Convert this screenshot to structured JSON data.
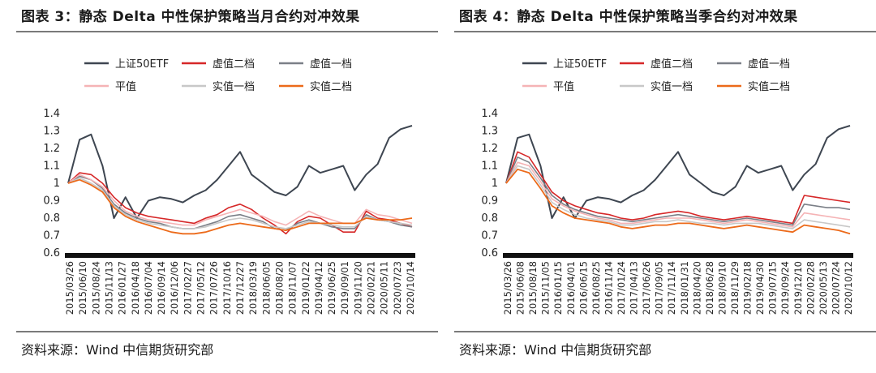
{
  "chart_data": [
    {
      "type": "line",
      "title": "图表 3：静态 Delta 中性保护策略当月合约对冲效果",
      "source": "资料来源：Wind 中信期货研究部",
      "ylim": [
        0.6,
        1.4
      ],
      "yticks": [
        "0.6",
        "0.7",
        "0.8",
        "0.9",
        "1",
        "1.1",
        "1.2",
        "1.3",
        "1.4"
      ],
      "x_labels": [
        "2015/03/26",
        "2015/06/10",
        "2015/08/24",
        "2015/11/13",
        "2016/01/27",
        "2016/04/18",
        "2016/07/04",
        "2016/09/14",
        "2016/12/06",
        "2017/02/27",
        "2017/05/12",
        "2017/07/26",
        "2017/10/16",
        "2017/12/27",
        "2018/03/19",
        "2018/06/05",
        "2018/08/20",
        "2018/11/07",
        "2019/01/22",
        "2019/04/12",
        "2019/06/25",
        "2019/09/01",
        "2019/11/20",
        "2020/02/21",
        "2020/05/11",
        "2020/07/23",
        "2020/10/14"
      ],
      "series": [
        {
          "name": "上证50ETF",
          "color": "#3e4651",
          "width": 2.0,
          "values": [
            1.0,
            1.25,
            1.28,
            1.1,
            0.8,
            0.92,
            0.8,
            0.9,
            0.92,
            0.91,
            0.89,
            0.93,
            0.96,
            1.02,
            1.1,
            1.18,
            1.05,
            1.0,
            0.95,
            0.93,
            0.98,
            1.1,
            1.06,
            1.08,
            1.1,
            0.96,
            1.05,
            1.11,
            1.26,
            1.31,
            1.33
          ]
        },
        {
          "name": "虚值二档",
          "color": "#d62728",
          "width": 1.6,
          "values": [
            1.0,
            1.06,
            1.05,
            1.0,
            0.92,
            0.86,
            0.83,
            0.81,
            0.8,
            0.79,
            0.78,
            0.77,
            0.8,
            0.82,
            0.86,
            0.88,
            0.85,
            0.8,
            0.76,
            0.71,
            0.78,
            0.81,
            0.8,
            0.76,
            0.72,
            0.72,
            0.84,
            0.8,
            0.79,
            0.77,
            0.75
          ]
        },
        {
          "name": "虚值一档",
          "color": "#7b7f87",
          "width": 1.6,
          "values": [
            1.0,
            1.04,
            1.02,
            0.97,
            0.88,
            0.83,
            0.8,
            0.78,
            0.77,
            0.75,
            0.74,
            0.74,
            0.76,
            0.78,
            0.81,
            0.82,
            0.8,
            0.78,
            0.74,
            0.73,
            0.77,
            0.79,
            0.77,
            0.75,
            0.74,
            0.74,
            0.82,
            0.79,
            0.78,
            0.76,
            0.75
          ]
        },
        {
          "name": "平值",
          "color": "#f5b3b5",
          "width": 1.6,
          "values": [
            1.0,
            1.05,
            1.02,
            0.98,
            0.9,
            0.84,
            0.81,
            0.79,
            0.78,
            0.77,
            0.76,
            0.76,
            0.79,
            0.81,
            0.83,
            0.85,
            0.83,
            0.81,
            0.78,
            0.76,
            0.8,
            0.84,
            0.81,
            0.79,
            0.77,
            0.77,
            0.85,
            0.82,
            0.81,
            0.79,
            0.77
          ]
        },
        {
          "name": "实值一档",
          "color": "#c8c8c8",
          "width": 1.6,
          "values": [
            1.0,
            1.03,
            1.0,
            0.96,
            0.87,
            0.82,
            0.79,
            0.77,
            0.76,
            0.75,
            0.74,
            0.74,
            0.75,
            0.77,
            0.79,
            0.8,
            0.79,
            0.77,
            0.75,
            0.74,
            0.76,
            0.78,
            0.77,
            0.76,
            0.75,
            0.75,
            0.81,
            0.79,
            0.78,
            0.77,
            0.76
          ]
        },
        {
          "name": "实值二档",
          "color": "#ec6a1a",
          "width": 1.8,
          "values": [
            1.0,
            1.02,
            0.99,
            0.95,
            0.86,
            0.81,
            0.78,
            0.76,
            0.74,
            0.72,
            0.71,
            0.71,
            0.72,
            0.74,
            0.76,
            0.77,
            0.76,
            0.75,
            0.74,
            0.73,
            0.75,
            0.77,
            0.77,
            0.77,
            0.77,
            0.77,
            0.8,
            0.79,
            0.79,
            0.79,
            0.8
          ]
        }
      ]
    },
    {
      "type": "line",
      "title": "图表 4：静态 Delta 中性保护策略当季合约对冲效果",
      "source": "资料来源：Wind 中信期货研究部",
      "ylim": [
        0.6,
        1.4
      ],
      "yticks": [
        "0.6",
        "0.7",
        "0.8",
        "0.9",
        "1",
        "1.1",
        "1.2",
        "1.3",
        "1.4"
      ],
      "x_labels": [
        "2015/03/26",
        "2015/06/08",
        "2015/08/18",
        "2015/11/05",
        "2016/01/15",
        "2016/04/01",
        "2016/06/15",
        "2016/08/25",
        "2016/11/14",
        "2017/01/24",
        "2017/04/13",
        "2017/06/26",
        "2017/09/05",
        "2017/11/14",
        "2018/01/31",
        "2018/04/20",
        "2018/06/28",
        "2018/09/10",
        "2018/11/29",
        "2019/02/18",
        "2019/04/30",
        "2019/07/15",
        "2019/09/24",
        "2019/12/10",
        "2020/02/28",
        "2020/05/13",
        "2020/07/24",
        "2020/10/12"
      ],
      "series": [
        {
          "name": "上证50ETF",
          "color": "#3e4651",
          "width": 2.0,
          "values": [
            1.0,
            1.26,
            1.28,
            1.1,
            0.8,
            0.92,
            0.8,
            0.9,
            0.92,
            0.91,
            0.89,
            0.93,
            0.96,
            1.02,
            1.1,
            1.18,
            1.05,
            1.0,
            0.95,
            0.93,
            0.98,
            1.1,
            1.06,
            1.08,
            1.1,
            0.96,
            1.05,
            1.11,
            1.26,
            1.31,
            1.33
          ]
        },
        {
          "name": "虚值二档",
          "color": "#d62728",
          "width": 1.6,
          "values": [
            1.0,
            1.18,
            1.15,
            1.05,
            0.95,
            0.9,
            0.87,
            0.85,
            0.83,
            0.82,
            0.8,
            0.79,
            0.8,
            0.82,
            0.83,
            0.84,
            0.83,
            0.81,
            0.8,
            0.79,
            0.8,
            0.81,
            0.8,
            0.79,
            0.78,
            0.77,
            0.93,
            0.92,
            0.91,
            0.9,
            0.89
          ]
        },
        {
          "name": "虚值一档",
          "color": "#7b7f87",
          "width": 1.6,
          "values": [
            1.0,
            1.15,
            1.12,
            1.03,
            0.93,
            0.88,
            0.85,
            0.83,
            0.81,
            0.8,
            0.79,
            0.78,
            0.79,
            0.8,
            0.81,
            0.82,
            0.81,
            0.8,
            0.79,
            0.78,
            0.79,
            0.8,
            0.79,
            0.78,
            0.77,
            0.76,
            0.88,
            0.87,
            0.86,
            0.86,
            0.85
          ]
        },
        {
          "name": "平值",
          "color": "#f5b3b5",
          "width": 1.6,
          "values": [
            1.0,
            1.12,
            1.1,
            1.01,
            0.91,
            0.87,
            0.84,
            0.82,
            0.8,
            0.79,
            0.77,
            0.77,
            0.78,
            0.79,
            0.8,
            0.8,
            0.8,
            0.79,
            0.78,
            0.77,
            0.78,
            0.79,
            0.78,
            0.77,
            0.76,
            0.75,
            0.83,
            0.82,
            0.81,
            0.8,
            0.79
          ]
        },
        {
          "name": "实值一档",
          "color": "#c8c8c8",
          "width": 1.6,
          "values": [
            1.0,
            1.1,
            1.08,
            0.99,
            0.89,
            0.85,
            0.82,
            0.8,
            0.79,
            0.78,
            0.76,
            0.76,
            0.77,
            0.78,
            0.78,
            0.79,
            0.78,
            0.77,
            0.77,
            0.76,
            0.77,
            0.77,
            0.77,
            0.76,
            0.75,
            0.74,
            0.79,
            0.78,
            0.77,
            0.76,
            0.75
          ]
        },
        {
          "name": "实值二档",
          "color": "#ec6a1a",
          "width": 1.8,
          "values": [
            1.0,
            1.08,
            1.06,
            0.97,
            0.87,
            0.83,
            0.8,
            0.79,
            0.78,
            0.77,
            0.75,
            0.74,
            0.75,
            0.76,
            0.76,
            0.77,
            0.77,
            0.76,
            0.75,
            0.74,
            0.75,
            0.76,
            0.75,
            0.74,
            0.73,
            0.72,
            0.76,
            0.75,
            0.74,
            0.73,
            0.71
          ]
        }
      ]
    }
  ]
}
